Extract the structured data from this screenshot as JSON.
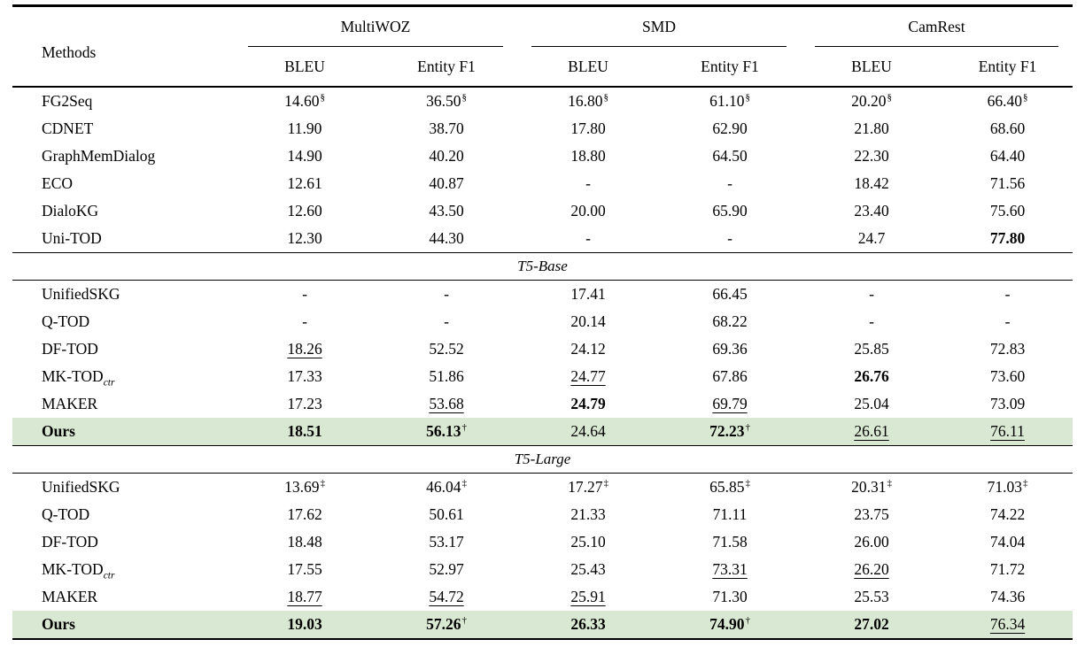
{
  "colors": {
    "background": "#ffffff",
    "text": "#000000",
    "rule": "#000000",
    "highlight_row": "#d9e8d2"
  },
  "table": {
    "methods_header": "Methods",
    "groups": [
      {
        "label": "MultiWOZ"
      },
      {
        "label": "SMD"
      },
      {
        "label": "CamRest"
      }
    ],
    "subheaders": [
      "BLEU",
      "Entity F1",
      "BLEU",
      "Entity F1",
      "BLEU",
      "Entity F1"
    ],
    "sections": [
      {
        "label": null,
        "rows": [
          {
            "method": "FG2Seq",
            "cells": [
              {
                "t": "14.60",
                "sup": "§"
              },
              {
                "t": "36.50",
                "sup": "§"
              },
              {
                "t": "16.80",
                "sup": "§"
              },
              {
                "t": "61.10",
                "sup": "§"
              },
              {
                "t": "20.20",
                "sup": "§"
              },
              {
                "t": "66.40",
                "sup": "§"
              }
            ]
          },
          {
            "method": "CDNET",
            "cells": [
              {
                "t": "11.90"
              },
              {
                "t": "38.70"
              },
              {
                "t": "17.80"
              },
              {
                "t": "62.90"
              },
              {
                "t": "21.80"
              },
              {
                "t": "68.60"
              }
            ]
          },
          {
            "method": "GraphMemDialog",
            "cells": [
              {
                "t": "14.90"
              },
              {
                "t": "40.20"
              },
              {
                "t": "18.80"
              },
              {
                "t": "64.50"
              },
              {
                "t": "22.30"
              },
              {
                "t": "64.40"
              }
            ]
          },
          {
            "method": "ECO",
            "cells": [
              {
                "t": "12.61"
              },
              {
                "t": "40.87"
              },
              {
                "t": "-"
              },
              {
                "t": "-"
              },
              {
                "t": "18.42"
              },
              {
                "t": "71.56"
              }
            ]
          },
          {
            "method": "DialoKG",
            "cells": [
              {
                "t": "12.60"
              },
              {
                "t": "43.50"
              },
              {
                "t": "20.00"
              },
              {
                "t": "65.90"
              },
              {
                "t": "23.40"
              },
              {
                "t": "75.60"
              }
            ]
          },
          {
            "method": "Uni-TOD",
            "cells": [
              {
                "t": "12.30"
              },
              {
                "t": "44.30"
              },
              {
                "t": "-"
              },
              {
                "t": "-"
              },
              {
                "t": "24.7"
              },
              {
                "t": "77.80",
                "b": true
              }
            ]
          }
        ]
      },
      {
        "label": "T5-Base",
        "rows": [
          {
            "method": "UnifiedSKG",
            "cells": [
              {
                "t": "-"
              },
              {
                "t": "-"
              },
              {
                "t": "17.41"
              },
              {
                "t": "66.45"
              },
              {
                "t": "-"
              },
              {
                "t": "-"
              }
            ]
          },
          {
            "method": "Q-TOD",
            "cells": [
              {
                "t": "-"
              },
              {
                "t": "-"
              },
              {
                "t": "20.14"
              },
              {
                "t": "68.22"
              },
              {
                "t": "-"
              },
              {
                "t": "-"
              }
            ]
          },
          {
            "method": "DF-TOD",
            "cells": [
              {
                "t": "18.26",
                "u": true
              },
              {
                "t": "52.52"
              },
              {
                "t": "24.12"
              },
              {
                "t": "69.36"
              },
              {
                "t": "25.85"
              },
              {
                "t": "72.83"
              }
            ]
          },
          {
            "method": "MK-TOD",
            "method_sub": "ctr",
            "cells": [
              {
                "t": "17.33"
              },
              {
                "t": "51.86"
              },
              {
                "t": "24.77",
                "u": true
              },
              {
                "t": "67.86"
              },
              {
                "t": "26.76",
                "b": true
              },
              {
                "t": "73.60"
              }
            ]
          },
          {
            "method": "MAKER",
            "cells": [
              {
                "t": "17.23"
              },
              {
                "t": "53.68",
                "u": true
              },
              {
                "t": "24.79",
                "b": true
              },
              {
                "t": "69.79",
                "u": true
              },
              {
                "t": "25.04"
              },
              {
                "t": "73.09"
              }
            ]
          },
          {
            "method": "Ours",
            "bold": true,
            "highlight": true,
            "cells": [
              {
                "t": "18.51",
                "b": true
              },
              {
                "t": "56.13",
                "b": true,
                "sup": "†"
              },
              {
                "t": "24.64"
              },
              {
                "t": "72.23",
                "b": true,
                "sup": "†"
              },
              {
                "t": "26.61",
                "u": true
              },
              {
                "t": "76.11",
                "u": true
              }
            ]
          }
        ]
      },
      {
        "label": "T5-Large",
        "rows": [
          {
            "method": "UnifiedSKG",
            "cells": [
              {
                "t": "13.69",
                "sup": "‡"
              },
              {
                "t": "46.04",
                "sup": "‡"
              },
              {
                "t": "17.27",
                "sup": "‡"
              },
              {
                "t": "65.85",
                "sup": "‡"
              },
              {
                "t": "20.31",
                "sup": "‡"
              },
              {
                "t": "71.03",
                "sup": "‡"
              }
            ]
          },
          {
            "method": "Q-TOD",
            "cells": [
              {
                "t": "17.62"
              },
              {
                "t": "50.61"
              },
              {
                "t": "21.33"
              },
              {
                "t": "71.11"
              },
              {
                "t": "23.75"
              },
              {
                "t": "74.22"
              }
            ]
          },
          {
            "method": "DF-TOD",
            "cells": [
              {
                "t": "18.48"
              },
              {
                "t": "53.17"
              },
              {
                "t": "25.10"
              },
              {
                "t": "71.58"
              },
              {
                "t": "26.00"
              },
              {
                "t": "74.04"
              }
            ]
          },
          {
            "method": "MK-TOD",
            "method_sub": "ctr",
            "cells": [
              {
                "t": "17.55"
              },
              {
                "t": "52.97"
              },
              {
                "t": "25.43"
              },
              {
                "t": "73.31",
                "u": true
              },
              {
                "t": "26.20",
                "u": true
              },
              {
                "t": "71.72"
              }
            ]
          },
          {
            "method": "MAKER",
            "cells": [
              {
                "t": "18.77",
                "u": true
              },
              {
                "t": "54.72",
                "u": true
              },
              {
                "t": "25.91",
                "u": true
              },
              {
                "t": "71.30"
              },
              {
                "t": "25.53"
              },
              {
                "t": "74.36"
              }
            ]
          },
          {
            "method": "Ours",
            "bold": true,
            "highlight": true,
            "cells": [
              {
                "t": "19.03",
                "b": true
              },
              {
                "t": "57.26",
                "b": true,
                "sup": "†"
              },
              {
                "t": "26.33",
                "b": true
              },
              {
                "t": "74.90",
                "b": true,
                "sup": "†"
              },
              {
                "t": "27.02",
                "b": true
              },
              {
                "t": "76.34",
                "u": true
              }
            ]
          }
        ]
      }
    ]
  }
}
